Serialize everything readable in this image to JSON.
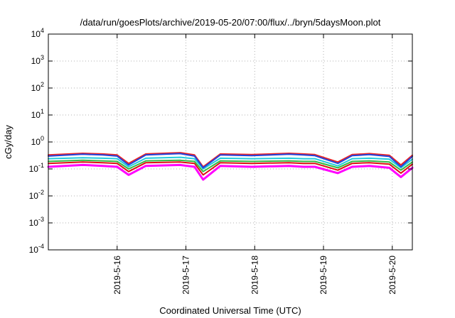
{
  "chart_data": {
    "type": "line",
    "title": "/data/run/goesPlots/archive/2019-05-20/07:00/flux/../bryn/5daysMoon.plot",
    "xlabel": "Coordinated Universal Time (UTC)",
    "ylabel": "cGy/day",
    "yscale": "log",
    "ylim": [
      0.0001,
      10000
    ],
    "y_ticks": [
      {
        "value": 0.0001,
        "base": "10",
        "exp": "-4"
      },
      {
        "value": 0.001,
        "base": "10",
        "exp": "-3"
      },
      {
        "value": 0.01,
        "base": "10",
        "exp": "-2"
      },
      {
        "value": 0.1,
        "base": "10",
        "exp": "-1"
      },
      {
        "value": 1,
        "base": "10",
        "exp": "0"
      },
      {
        "value": 10,
        "base": "10",
        "exp": "1"
      },
      {
        "value": 100,
        "base": "10",
        "exp": "2"
      },
      {
        "value": 1000,
        "base": "10",
        "exp": "3"
      },
      {
        "value": 10000,
        "base": "10",
        "exp": "4"
      }
    ],
    "x_range_days": [
      "2019-05-15T00:00",
      "2019-05-20T07:00"
    ],
    "x_ticks": [
      "2019-5-16",
      "2019-5-17",
      "2019-5-18",
      "2019-5-19",
      "2019-5-20"
    ],
    "grid": true,
    "legend": "none",
    "series": [
      {
        "color": "#ff00ff",
        "x": [
          "05-15 00:00",
          "05-15 12:00",
          "05-15 19:00",
          "05-16 00:00",
          "05-16 04:00",
          "05-16 10:00",
          "05-16 22:00",
          "05-17 03:00",
          "05-17 06:00",
          "05-17 12:00",
          "05-17 23:00",
          "05-18 12:00",
          "05-18 17:00",
          "05-18 21:00",
          "05-19 05:00",
          "05-19 10:00",
          "05-19 16:00",
          "05-19 23:00",
          "05-20 03:00",
          "05-20 07:00"
        ],
        "values": [
          0.12,
          0.14,
          0.13,
          0.12,
          0.06,
          0.13,
          0.14,
          0.12,
          0.04,
          0.13,
          0.12,
          0.13,
          0.12,
          0.12,
          0.07,
          0.12,
          0.13,
          0.11,
          0.05,
          0.11
        ]
      },
      {
        "color": "#dd1111",
        "x": [
          "05-15 00:00",
          "05-15 12:00",
          "05-15 19:00",
          "05-16 00:00",
          "05-16 04:00",
          "05-16 10:00",
          "05-16 22:00",
          "05-17 03:00",
          "05-17 06:00",
          "05-17 12:00",
          "05-17 23:00",
          "05-18 12:00",
          "05-18 17:00",
          "05-18 21:00",
          "05-19 05:00",
          "05-19 10:00",
          "05-19 16:00",
          "05-19 23:00",
          "05-20 03:00",
          "05-20 07:00"
        ],
        "values": [
          0.16,
          0.18,
          0.17,
          0.16,
          0.08,
          0.17,
          0.18,
          0.16,
          0.06,
          0.17,
          0.16,
          0.17,
          0.16,
          0.16,
          0.09,
          0.16,
          0.17,
          0.15,
          0.07,
          0.15
        ]
      },
      {
        "color": "#33bb44",
        "x": [
          "05-15 00:00",
          "05-15 12:00",
          "05-15 19:00",
          "05-16 00:00",
          "05-16 04:00",
          "05-16 10:00",
          "05-16 22:00",
          "05-17 03:00",
          "05-17 06:00",
          "05-17 12:00",
          "05-17 23:00",
          "05-18 12:00",
          "05-18 17:00",
          "05-18 21:00",
          "05-19 05:00",
          "05-19 10:00",
          "05-19 16:00",
          "05-19 23:00",
          "05-20 03:00",
          "05-20 07:00"
        ],
        "values": [
          0.19,
          0.21,
          0.2,
          0.19,
          0.1,
          0.2,
          0.21,
          0.19,
          0.08,
          0.2,
          0.19,
          0.2,
          0.19,
          0.19,
          0.11,
          0.19,
          0.2,
          0.18,
          0.09,
          0.18
        ]
      },
      {
        "color": "#22ccdd",
        "x": [
          "05-15 00:00",
          "05-15 12:00",
          "05-15 19:00",
          "05-16 00:00",
          "05-16 04:00",
          "05-16 10:00",
          "05-16 22:00",
          "05-17 03:00",
          "05-17 06:00",
          "05-17 12:00",
          "05-17 23:00",
          "05-18 12:00",
          "05-18 17:00",
          "05-18 21:00",
          "05-19 05:00",
          "05-19 10:00",
          "05-19 16:00",
          "05-19 23:00",
          "05-20 03:00",
          "05-20 07:00"
        ],
        "values": [
          0.24,
          0.26,
          0.25,
          0.24,
          0.12,
          0.25,
          0.27,
          0.24,
          0.1,
          0.25,
          0.24,
          0.25,
          0.24,
          0.24,
          0.13,
          0.24,
          0.25,
          0.23,
          0.11,
          0.23
        ]
      },
      {
        "color": "#ee2222",
        "x": [
          "05-15 00:00",
          "05-15 12:00",
          "05-15 19:00",
          "05-16 00:00",
          "05-16 04:00",
          "05-16 10:00",
          "05-16 22:00",
          "05-17 03:00",
          "05-17 06:00",
          "05-17 12:00",
          "05-17 23:00",
          "05-18 12:00",
          "05-18 17:00",
          "05-18 21:00",
          "05-19 05:00",
          "05-19 10:00",
          "05-19 16:00",
          "05-19 23:00",
          "05-20 03:00",
          "05-20 07:00"
        ],
        "values": [
          0.33,
          0.38,
          0.36,
          0.33,
          0.16,
          0.36,
          0.4,
          0.33,
          0.12,
          0.36,
          0.34,
          0.38,
          0.36,
          0.34,
          0.18,
          0.34,
          0.37,
          0.32,
          0.14,
          0.32
        ]
      },
      {
        "color": "#2244dd",
        "x": [
          "05-15 00:00",
          "05-15 12:00",
          "05-15 19:00",
          "05-16 00:00",
          "05-16 04:00",
          "05-16 10:00",
          "05-16 22:00",
          "05-17 03:00",
          "05-17 06:00",
          "05-17 12:00",
          "05-17 23:00",
          "05-18 12:00",
          "05-18 17:00",
          "05-18 21:00",
          "05-19 05:00",
          "05-19 10:00",
          "05-19 16:00",
          "05-19 23:00",
          "05-20 03:00",
          "05-20 07:00"
        ],
        "values": [
          0.3,
          0.35,
          0.33,
          0.3,
          0.14,
          0.33,
          0.37,
          0.3,
          0.11,
          0.33,
          0.31,
          0.35,
          0.33,
          0.31,
          0.16,
          0.31,
          0.34,
          0.29,
          0.12,
          0.29
        ]
      }
    ]
  }
}
